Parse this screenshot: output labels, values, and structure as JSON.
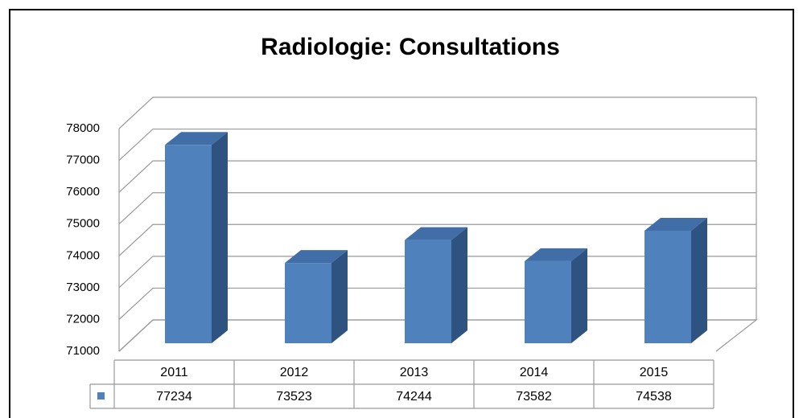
{
  "chart_data": {
    "type": "bar3d",
    "title": "Radiologie: Consultations",
    "categories": [
      "2011",
      "2012",
      "2013",
      "2014",
      "2015"
    ],
    "values": [
      77234,
      73523,
      74244,
      73582,
      74538
    ],
    "color": "#4f81bd",
    "ylim": [
      71000,
      78000
    ],
    "yticks": [
      71000,
      72000,
      73000,
      74000,
      75000,
      76000,
      77000,
      78000
    ],
    "grid": true
  }
}
